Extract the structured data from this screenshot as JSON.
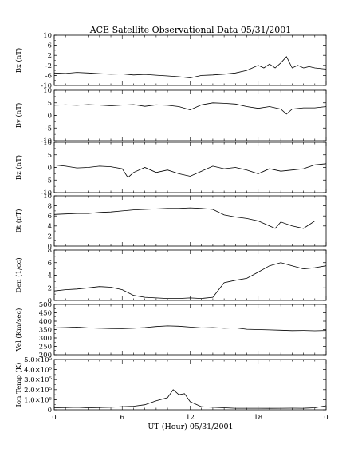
{
  "chart_data": {
    "type": "line",
    "title": "ACE Satellite Observational Data   05/31/2001",
    "xlabel": "UT (Hour)   05/31/2001",
    "xlim": [
      0,
      24
    ],
    "x_ticks": [
      "0",
      "6",
      "12",
      "18",
      "0"
    ],
    "grid": false,
    "panels": [
      {
        "name": "Bx (nT)",
        "ylim": [
          -10,
          10
        ],
        "y_ticks": [
          "10",
          "6",
          "2",
          "-2",
          "-6",
          "-10"
        ],
        "x": [
          0,
          1,
          2,
          3,
          4,
          5,
          6,
          7,
          8,
          9,
          10,
          11,
          12,
          13,
          14,
          15,
          16,
          17,
          18,
          18.5,
          19,
          19.5,
          20,
          20.5,
          21,
          21.5,
          22,
          22.5,
          23,
          24
        ],
        "y": [
          -5,
          -5.2,
          -4.8,
          -5,
          -5.3,
          -5.5,
          -5.4,
          -5.8,
          -5.6,
          -5.9,
          -6.2,
          -6.5,
          -7,
          -6,
          -5.8,
          -5.5,
          -5,
          -4,
          -2,
          -3,
          -1.5,
          -3,
          -1,
          1.5,
          -3,
          -2,
          -3,
          -2.5,
          -3,
          -3.5
        ]
      },
      {
        "name": "By (nT)",
        "ylim": [
          -10,
          10
        ],
        "y_ticks": [
          "10",
          "5",
          "0",
          "-5",
          "-10"
        ],
        "x": [
          0,
          1,
          2,
          3,
          4,
          5,
          6,
          7,
          8,
          9,
          10,
          11,
          12,
          13,
          14,
          15,
          16,
          17,
          18,
          19,
          20,
          20.5,
          21,
          22,
          23,
          24
        ],
        "y": [
          4,
          4.2,
          4,
          4.3,
          4.1,
          3.8,
          4.1,
          4.3,
          3.6,
          4.2,
          4,
          3.5,
          2.2,
          4.2,
          5,
          4.8,
          4.5,
          3.5,
          2.8,
          3.5,
          2.5,
          0.5,
          2.5,
          3,
          3,
          3.5
        ]
      },
      {
        "name": "Bz (nT)",
        "ylim": [
          -10,
          10
        ],
        "y_ticks": [
          "10",
          "5",
          "0",
          "-5",
          "-10"
        ],
        "x": [
          0,
          1,
          2,
          3,
          4,
          5,
          6,
          6.5,
          7,
          8,
          9,
          10,
          11,
          12,
          13,
          14,
          15,
          16,
          17,
          18,
          19,
          20,
          21,
          22,
          23,
          24
        ],
        "y": [
          1,
          0.5,
          -0.2,
          0,
          0.5,
          0.3,
          -0.5,
          -4,
          -2,
          0,
          -2,
          -1,
          -2.5,
          -3.5,
          -1.5,
          0.5,
          -0.5,
          0,
          -1,
          -2.5,
          -0.5,
          -1.5,
          -1,
          -0.5,
          1,
          1.5
        ]
      },
      {
        "name": "Bt (nT)",
        "ylim": [
          0,
          10
        ],
        "y_ticks": [
          "10",
          "8",
          "6",
          "4",
          "2",
          "0"
        ],
        "x": [
          0,
          1,
          2,
          3,
          4,
          5,
          6,
          7,
          8,
          9,
          10,
          11,
          12,
          13,
          14,
          15,
          16,
          17,
          18,
          19,
          19.5,
          20,
          21,
          22,
          23,
          24
        ],
        "y": [
          6.3,
          6.4,
          6.5,
          6.5,
          6.7,
          6.8,
          7,
          7.2,
          7.3,
          7.4,
          7.5,
          7.5,
          7.6,
          7.5,
          7.3,
          6.2,
          5.8,
          5.5,
          5,
          4,
          3.5,
          4.8,
          4,
          3.5,
          5,
          5
        ]
      },
      {
        "name": "Den (1/cc)",
        "ylim": [
          0,
          8
        ],
        "y_ticks": [
          "8",
          "6",
          "4",
          "2",
          "0"
        ],
        "x": [
          0,
          1,
          2,
          3,
          4,
          5,
          6,
          7,
          8,
          9,
          10,
          11,
          12,
          13,
          14,
          15,
          16,
          17,
          18,
          19,
          20,
          21,
          22,
          23,
          24
        ],
        "y": [
          1.5,
          1.7,
          1.8,
          2,
          2.2,
          2.1,
          1.7,
          0.8,
          0.5,
          0.4,
          0.3,
          0.3,
          0.4,
          0.3,
          0.5,
          2.8,
          3.2,
          3.5,
          4.5,
          5.5,
          6,
          5.5,
          5,
          5.2,
          5.5
        ]
      },
      {
        "name": "Vel (Km/sec)",
        "ylim": [
          200,
          500
        ],
        "y_ticks": [
          "500",
          "450",
          "400",
          "350",
          "300",
          "250",
          "200"
        ],
        "x": [
          0,
          1,
          2,
          3,
          4,
          5,
          6,
          7,
          8,
          9,
          10,
          11,
          12,
          13,
          14,
          15,
          16,
          17,
          18,
          19,
          20,
          21,
          22,
          23,
          24
        ],
        "y": [
          360,
          362,
          365,
          360,
          358,
          356,
          355,
          358,
          362,
          368,
          372,
          370,
          365,
          360,
          362,
          358,
          360,
          352,
          350,
          348,
          346,
          344,
          345,
          343,
          345
        ]
      },
      {
        "name": "Ion Temp (K)",
        "ylim": [
          0,
          500000
        ],
        "y_ticks": [
          "5.0×10⁵",
          "4.0×10⁵",
          "3.0×10⁵",
          "2.0×10⁵",
          "1.0×10⁵",
          "0"
        ],
        "x": [
          0,
          1,
          2,
          3,
          4,
          5,
          6,
          7,
          8,
          9,
          10,
          10.5,
          11,
          11.5,
          12,
          13,
          14,
          15,
          16,
          17,
          18,
          19,
          20,
          21,
          22,
          23,
          24
        ],
        "y": [
          20000,
          22000,
          25000,
          20000,
          22000,
          25000,
          30000,
          35000,
          50000,
          90000,
          120000,
          200000,
          150000,
          160000,
          80000,
          30000,
          25000,
          20000,
          15000,
          15000,
          15000,
          14000,
          15000,
          16000,
          15000,
          20000,
          40000
        ]
      }
    ]
  }
}
